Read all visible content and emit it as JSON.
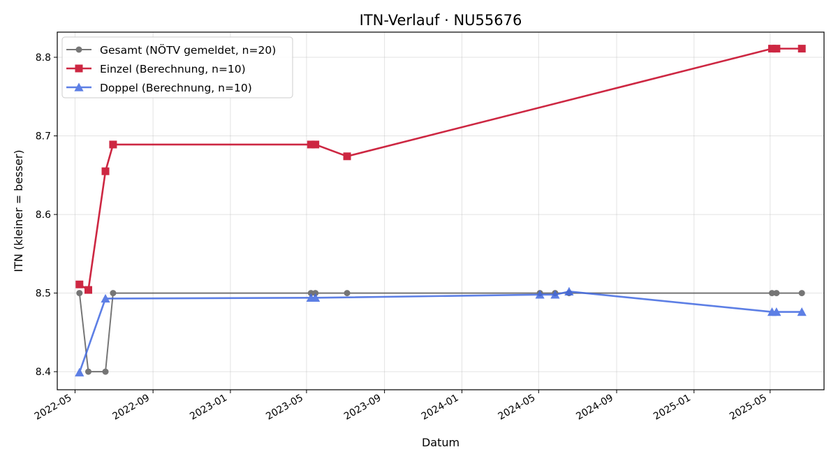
{
  "chart_data": {
    "type": "line",
    "title": "ITN-Verlauf · NU55676",
    "xlabel": "Datum",
    "ylabel": "ITN  (kleiner = besser)",
    "xlim": [
      "2022-04-03",
      "2025-07-25"
    ],
    "ylim": [
      8.377,
      8.832
    ],
    "x_ticks": [
      "2022-05-01",
      "2022-09-01",
      "2023-01-01",
      "2023-05-01",
      "2023-09-01",
      "2024-01-01",
      "2024-05-01",
      "2024-09-01",
      "2025-01-01",
      "2025-05-01"
    ],
    "x_tick_labels": [
      "2022-05",
      "2022-09",
      "2023-01",
      "2023-05",
      "2023-09",
      "2024-01",
      "2024-05",
      "2024-09",
      "2025-01",
      "2025-05"
    ],
    "y_ticks": [
      8.4,
      8.5,
      8.6,
      8.7,
      8.8
    ],
    "y_tick_labels": [
      "8.4",
      "8.5",
      "8.6",
      "8.7",
      "8.8"
    ],
    "grid": true,
    "legend_position": "top-left",
    "series": [
      {
        "name": "Gesamt (NÖTV gemeldet, n=20)",
        "color": "#555555",
        "marker": "circle",
        "points": [
          [
            "2022-05-08",
            8.5
          ],
          [
            "2022-05-22",
            8.4
          ],
          [
            "2022-06-18",
            8.4
          ],
          [
            "2022-06-30",
            8.5
          ],
          [
            "2023-05-08",
            8.5
          ],
          [
            "2023-05-15",
            8.5
          ],
          [
            "2023-07-04",
            8.5
          ],
          [
            "2024-05-03",
            8.5
          ],
          [
            "2024-05-27",
            8.5
          ],
          [
            "2024-06-18",
            8.5
          ],
          [
            "2025-05-04",
            8.5
          ],
          [
            "2025-05-11",
            8.5
          ],
          [
            "2025-06-20",
            8.5
          ]
        ]
      },
      {
        "name": "Einzel (Berechnung, n=10)",
        "color": "#c8102e",
        "marker": "square",
        "points": [
          [
            "2022-05-08",
            8.511
          ],
          [
            "2022-05-22",
            8.504
          ],
          [
            "2022-06-18",
            8.655
          ],
          [
            "2022-06-30",
            8.689
          ],
          [
            "2023-05-08",
            8.689
          ],
          [
            "2023-05-15",
            8.689
          ],
          [
            "2023-07-04",
            8.674
          ],
          [
            "2025-05-04",
            8.811
          ],
          [
            "2025-05-11",
            8.811
          ],
          [
            "2025-06-20",
            8.811
          ]
        ]
      },
      {
        "name": "Doppel (Berechnung, n=10)",
        "color": "#4169e1",
        "marker": "triangle",
        "points": [
          [
            "2022-05-08",
            8.399
          ],
          [
            "2022-06-18",
            8.493
          ],
          [
            "2023-05-08",
            8.494
          ],
          [
            "2023-05-15",
            8.494
          ],
          [
            "2024-05-03",
            8.498
          ],
          [
            "2024-05-27",
            8.498
          ],
          [
            "2024-06-18",
            8.502
          ],
          [
            "2025-05-04",
            8.476
          ],
          [
            "2025-05-11",
            8.476
          ],
          [
            "2025-06-20",
            8.476
          ]
        ]
      }
    ]
  }
}
